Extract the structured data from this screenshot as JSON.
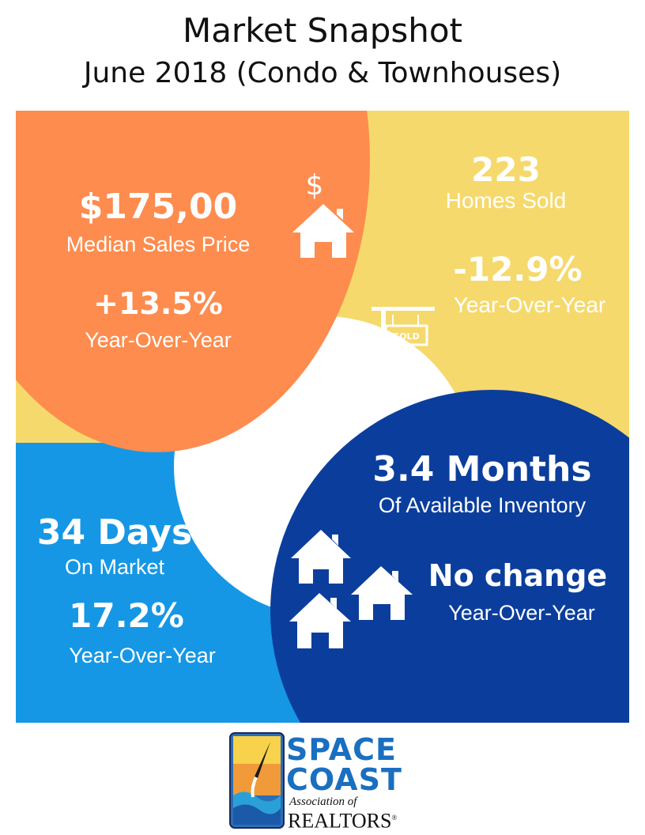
{
  "header": {
    "title": "Market Snapshot",
    "subtitle": "June 2018 (Condo & Townhouses)"
  },
  "median_price": {
    "value": "$175,00",
    "label": "Median Sales Price",
    "yoy_value": "+13.5%",
    "yoy_label": "Year-Over-Year",
    "icon": "house-dollar-icon"
  },
  "homes_sold": {
    "value": "223",
    "label": "Homes Sold",
    "yoy_value": "-12.9%",
    "yoy_label": "Year-Over-Year",
    "icon": "sold-sign-icon",
    "sign_text": "SOLD"
  },
  "days_on_market": {
    "value": "34 Days",
    "label": "On Market",
    "yoy_value": "17.2%",
    "yoy_label": "Year-Over-Year",
    "icon": "calendar-icon"
  },
  "inventory": {
    "value": "3.4 Months",
    "label": "Of Available Inventory",
    "yoy_value": "No change",
    "yoy_label": "Year-Over-Year",
    "icon": "houses-icon"
  },
  "logo": {
    "line1": "SPACE",
    "line2": "COAST",
    "line3": "Association of",
    "line4": "REALTORS"
  },
  "colors": {
    "orange": "#fd8c4e",
    "yellow": "#f6d96c",
    "light_blue": "#1597e5",
    "navy": "#0b3e9c"
  }
}
